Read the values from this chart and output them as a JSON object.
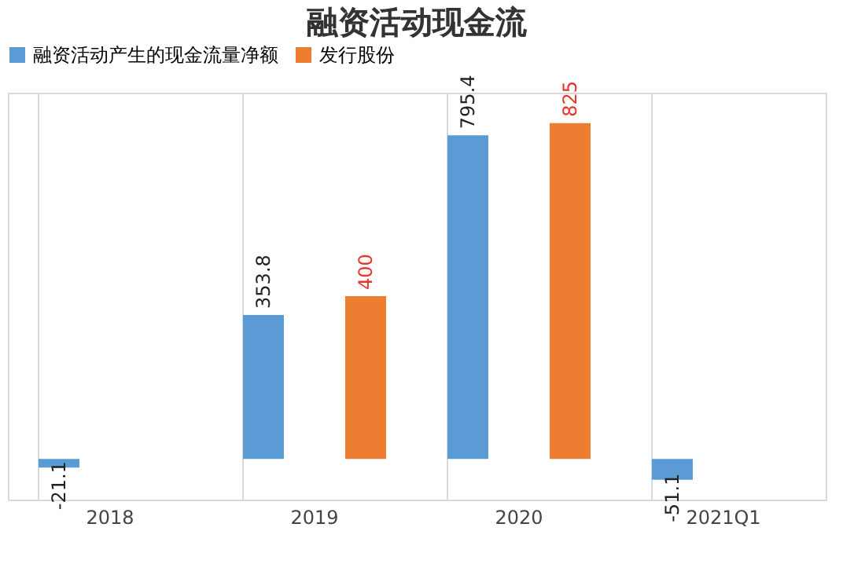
{
  "chart_data": {
    "type": "bar",
    "title": "融资活动现金流",
    "categories": [
      "2018",
      "2019",
      "2020",
      "2021Q1"
    ],
    "series": [
      {
        "name": "融资活动产生的现金流量净额",
        "color": "#5b9bd5",
        "values": [
          -21.1,
          353.8,
          795.4,
          -51.1
        ]
      },
      {
        "name": "发行股份",
        "color": "#ed7d31",
        "values": [
          null,
          400,
          825,
          null
        ]
      }
    ],
    "data_labels": true,
    "legend": "top",
    "grid": "x"
  }
}
